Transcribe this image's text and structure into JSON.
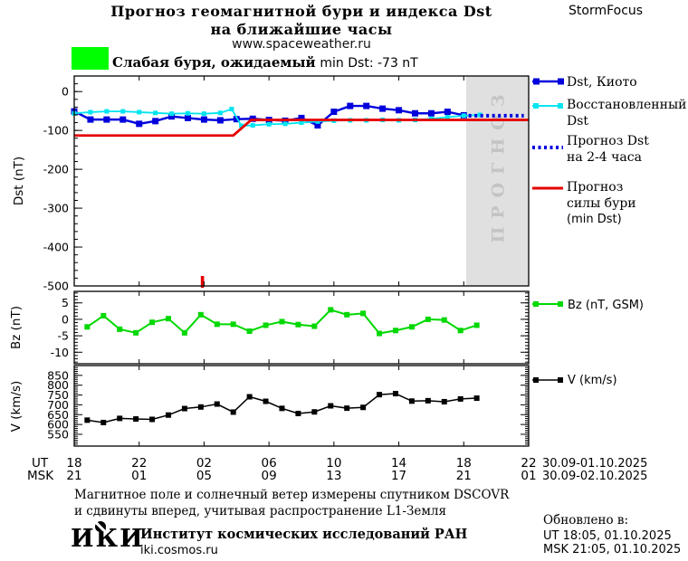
{
  "header": {
    "title_line1": "Прогноз геомагнитной бури и индекса Dst",
    "title_line2": "на ближайшие часы",
    "title_line3": "www.spaceweather.ru",
    "brand": "StormFocus"
  },
  "alert": {
    "swatch_color": "#00ff00",
    "text_ru": "Слабая буря, ожидаемый",
    "text_en": "min Dst: -73 nT"
  },
  "legend": {
    "dst_kyoto": "Dst, Киото",
    "dst_restored_l1": "Восстановленный",
    "dst_restored_l2": "Dst",
    "dst_forecast_l1": "Прогноз Dst",
    "dst_forecast_l2": "на 2-4 часа",
    "storm_forecast_l1": "Прогноз",
    "storm_forecast_l2": "силы бури",
    "storm_forecast_l3": "(min Dst)",
    "bz": "Bz (nT, GSM)",
    "v": "V (km/s)"
  },
  "axes": {
    "dst_label": "Dst (nT)",
    "bz_label": "Bz (nT)",
    "v_label": "V (km/s)",
    "ut_label": "UT",
    "msk_label": "MSK",
    "ut_ticks": [
      "18",
      "22",
      "02",
      "06",
      "10",
      "14",
      "18",
      "22"
    ],
    "msk_ticks": [
      "21",
      "01",
      "05",
      "09",
      "13",
      "17",
      "21",
      "01"
    ],
    "ut_date": "30.09-01.10.2025",
    "msk_date": "30.09-02.10.2025"
  },
  "forecast_region_label": "ПРОГНОЗ",
  "footer": {
    "note_line1": "Магнитное поле и солнечный ветер измерены спутником DSCOVR",
    "note_line2": "и сдвинуты вперед, учитывая распространение L1-Земля",
    "org_logo": "ИКИ",
    "org_name": "Институт космических исследований РАН",
    "org_site": "iki.cosmos.ru",
    "updated_label": "Обновлено в:",
    "updated_ut": "UT  18:05, 01.10.2025",
    "updated_msk": "MSK 21:05, 01.10.2025"
  },
  "colors": {
    "dst_kyoto": "#0000dc",
    "dst_restored": "#00e5f0",
    "dst_forecast": "#0000dc",
    "storm_forecast": "#e60000",
    "bz": "#00d800",
    "v": "#000000",
    "forecast_bg": "#e0e0e0",
    "forecast_fg": "#c4c4c4",
    "frame": "#000000"
  },
  "chart_data": [
    {
      "type": "line",
      "panel": "dst",
      "ylabel": "Dst (nT)",
      "ylim": [
        -500,
        40
      ],
      "yticks": [
        0,
        -100,
        -200,
        -300,
        -400,
        -500
      ],
      "minor_step": 20,
      "right_ticks": false,
      "xlim_hours": [
        0,
        28
      ],
      "x_axis_note": "hours after 18:00 UT 30.09.2025, ticks every 4 h",
      "forecast_region_start_hour": 24.15,
      "event_marker_hour": 7.9,
      "series": [
        {
          "name": "Dst, Киото",
          "color_key": "dst_kyoto",
          "width": 2.4,
          "marker": 7,
          "x": [
            0,
            1,
            2,
            3,
            4,
            5,
            6,
            7,
            8,
            9,
            10,
            11,
            12,
            13,
            14,
            15,
            16,
            17,
            18,
            19,
            20,
            21,
            22,
            23,
            24
          ],
          "values": [
            -51,
            -72,
            -72,
            -72,
            -83,
            -76,
            -64,
            -68,
            -72,
            -74,
            -71,
            -70,
            -73,
            -75,
            -68,
            -87,
            -52,
            -37,
            -37,
            -44,
            -48,
            -56,
            -56,
            -52,
            -61
          ]
        },
        {
          "name": "Восстановленный Dst",
          "color_key": "dst_restored",
          "width": 1.8,
          "marker": 5,
          "x": [
            0,
            1,
            2,
            3,
            4,
            5,
            6,
            7,
            8,
            9,
            9.7,
            10.3,
            11,
            12,
            13,
            14,
            15,
            16,
            17,
            18,
            19,
            20,
            21,
            22,
            23,
            24,
            25
          ],
          "values": [
            -56,
            -53,
            -51,
            -51,
            -53,
            -55,
            -57,
            -56,
            -57,
            -55,
            -45,
            -88,
            -87,
            -84,
            -83,
            -80,
            -77,
            -75,
            -74,
            -74,
            -73,
            -74,
            -73,
            -70,
            -66,
            -62,
            -60
          ]
        },
        {
          "name": "Прогноз Dst на 2-4 часа",
          "color_key": "dst_forecast",
          "width": 4,
          "style": "dotted",
          "x": [
            24.3,
            27.7
          ],
          "values": [
            -62,
            -62
          ]
        },
        {
          "name": "Прогноз силы бури (min Dst)",
          "color_key": "storm_forecast",
          "width": 2.8,
          "x": [
            0,
            9.8,
            10.9,
            28
          ],
          "values": [
            -113,
            -113,
            -73,
            -73
          ]
        }
      ]
    },
    {
      "type": "line",
      "panel": "bz",
      "ylabel": "Bz (nT)",
      "ylim": [
        -13.5,
        8.5
      ],
      "yticks": [
        5,
        0,
        -5,
        -10
      ],
      "minor_step": 1,
      "right_ticks": true,
      "xlim_hours": [
        0,
        28
      ],
      "series": [
        {
          "name": "Bz (nT, GSM)",
          "color_key": "bz",
          "width": 2,
          "marker": 6,
          "x": [
            0.8,
            1.8,
            2.8,
            3.8,
            4.8,
            5.8,
            6.8,
            7.8,
            8.8,
            9.8,
            10.8,
            11.8,
            12.8,
            13.8,
            14.8,
            15.8,
            16.8,
            17.8,
            18.8,
            19.8,
            20.8,
            21.8,
            22.8,
            23.8,
            24.8
          ],
          "values": [
            -2.3,
            1.1,
            -3.0,
            -4.1,
            -0.9,
            0.2,
            -4.1,
            1.4,
            -1.5,
            -1.5,
            -3.6,
            -1.8,
            -0.7,
            -1.6,
            -2.1,
            2.9,
            1.4,
            1.8,
            -4.3,
            -3.4,
            -2.3,
            0.0,
            -0.2,
            -3.4,
            -1.8
          ]
        }
      ]
    },
    {
      "type": "line",
      "panel": "v",
      "ylabel": "V (km/s)",
      "ylim": [
        490,
        900
      ],
      "yticks": [
        850,
        800,
        750,
        700,
        650,
        600,
        550
      ],
      "minor_step": 10,
      "right_ticks": true,
      "xlim_hours": [
        0,
        28
      ],
      "series": [
        {
          "name": "V (km/s)",
          "color_key": "v",
          "width": 1.5,
          "marker": 6,
          "x": [
            0.8,
            1.8,
            2.8,
            3.8,
            4.8,
            5.8,
            6.8,
            7.8,
            8.8,
            9.8,
            10.8,
            11.8,
            12.8,
            13.8,
            14.8,
            15.8,
            16.8,
            17.8,
            18.8,
            19.8,
            20.8,
            21.8,
            22.8,
            23.8,
            24.8
          ],
          "values": [
            622,
            610,
            631,
            628,
            626,
            648,
            681,
            689,
            704,
            663,
            741,
            718,
            682,
            656,
            664,
            695,
            683,
            687,
            752,
            757,
            719,
            721,
            716,
            730,
            734
          ]
        }
      ]
    }
  ]
}
